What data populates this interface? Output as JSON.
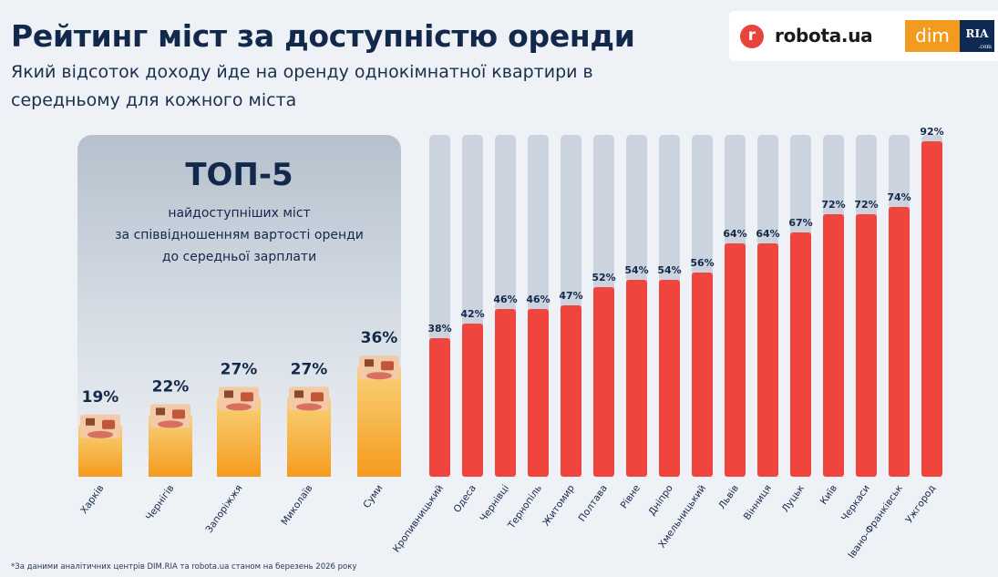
{
  "header": {
    "title": "Рейтинг міст за доступністю оренди",
    "subtitle": "Який відсоток доходу йде на оренду однокімнатної квартири в середньому для кожного міста"
  },
  "logos": {
    "robota": "robota.ua",
    "robota_mark": "r",
    "dim": "dim",
    "ria": "RIA",
    "ria_sub": ".com"
  },
  "top5": {
    "title": "ТОП-5",
    "description": "найдоступніших міст\nза співвідношенням вартості оренди\nдо середньої зарплати"
  },
  "footnote": "*За даними аналітичних центрів DIM.RIA та robota.ua станом на березень 2026 року",
  "colors": {
    "top5_bar_top": "#f8d27a",
    "top5_bar_bottom": "#f59b1e",
    "bar_fill": "#f0453f",
    "bar_track": "#cbd4de",
    "text": "#13294b"
  },
  "chart_data": {
    "type": "bar",
    "categories": [
      "Харків",
      "Чернігів",
      "Запоріжжя",
      "Миколаїв",
      "Суми",
      "Кропивницький",
      "Одеса",
      "Чернівці",
      "Тернопіль",
      "Житомир",
      "Полтава",
      "Рівне",
      "Дніпро",
      "Хмельницький",
      "Львів",
      "Вінниця",
      "Луцьк",
      "Київ",
      "Черкаси",
      "Івано-Франківськ",
      "Ужгород"
    ],
    "values": [
      19,
      22,
      27,
      27,
      36,
      38,
      42,
      46,
      46,
      47,
      52,
      54,
      54,
      56,
      64,
      64,
      67,
      72,
      72,
      74,
      92
    ],
    "value_labels": [
      "19%",
      "22%",
      "27%",
      "27%",
      "36%",
      "38%",
      "42%",
      "46%",
      "46%",
      "47%",
      "52%",
      "54%",
      "54%",
      "56%",
      "64%",
      "64%",
      "67%",
      "72%",
      "72%",
      "74%",
      "92%"
    ],
    "top5_count": 5,
    "unit": "%",
    "ylim": [
      0,
      100
    ]
  }
}
